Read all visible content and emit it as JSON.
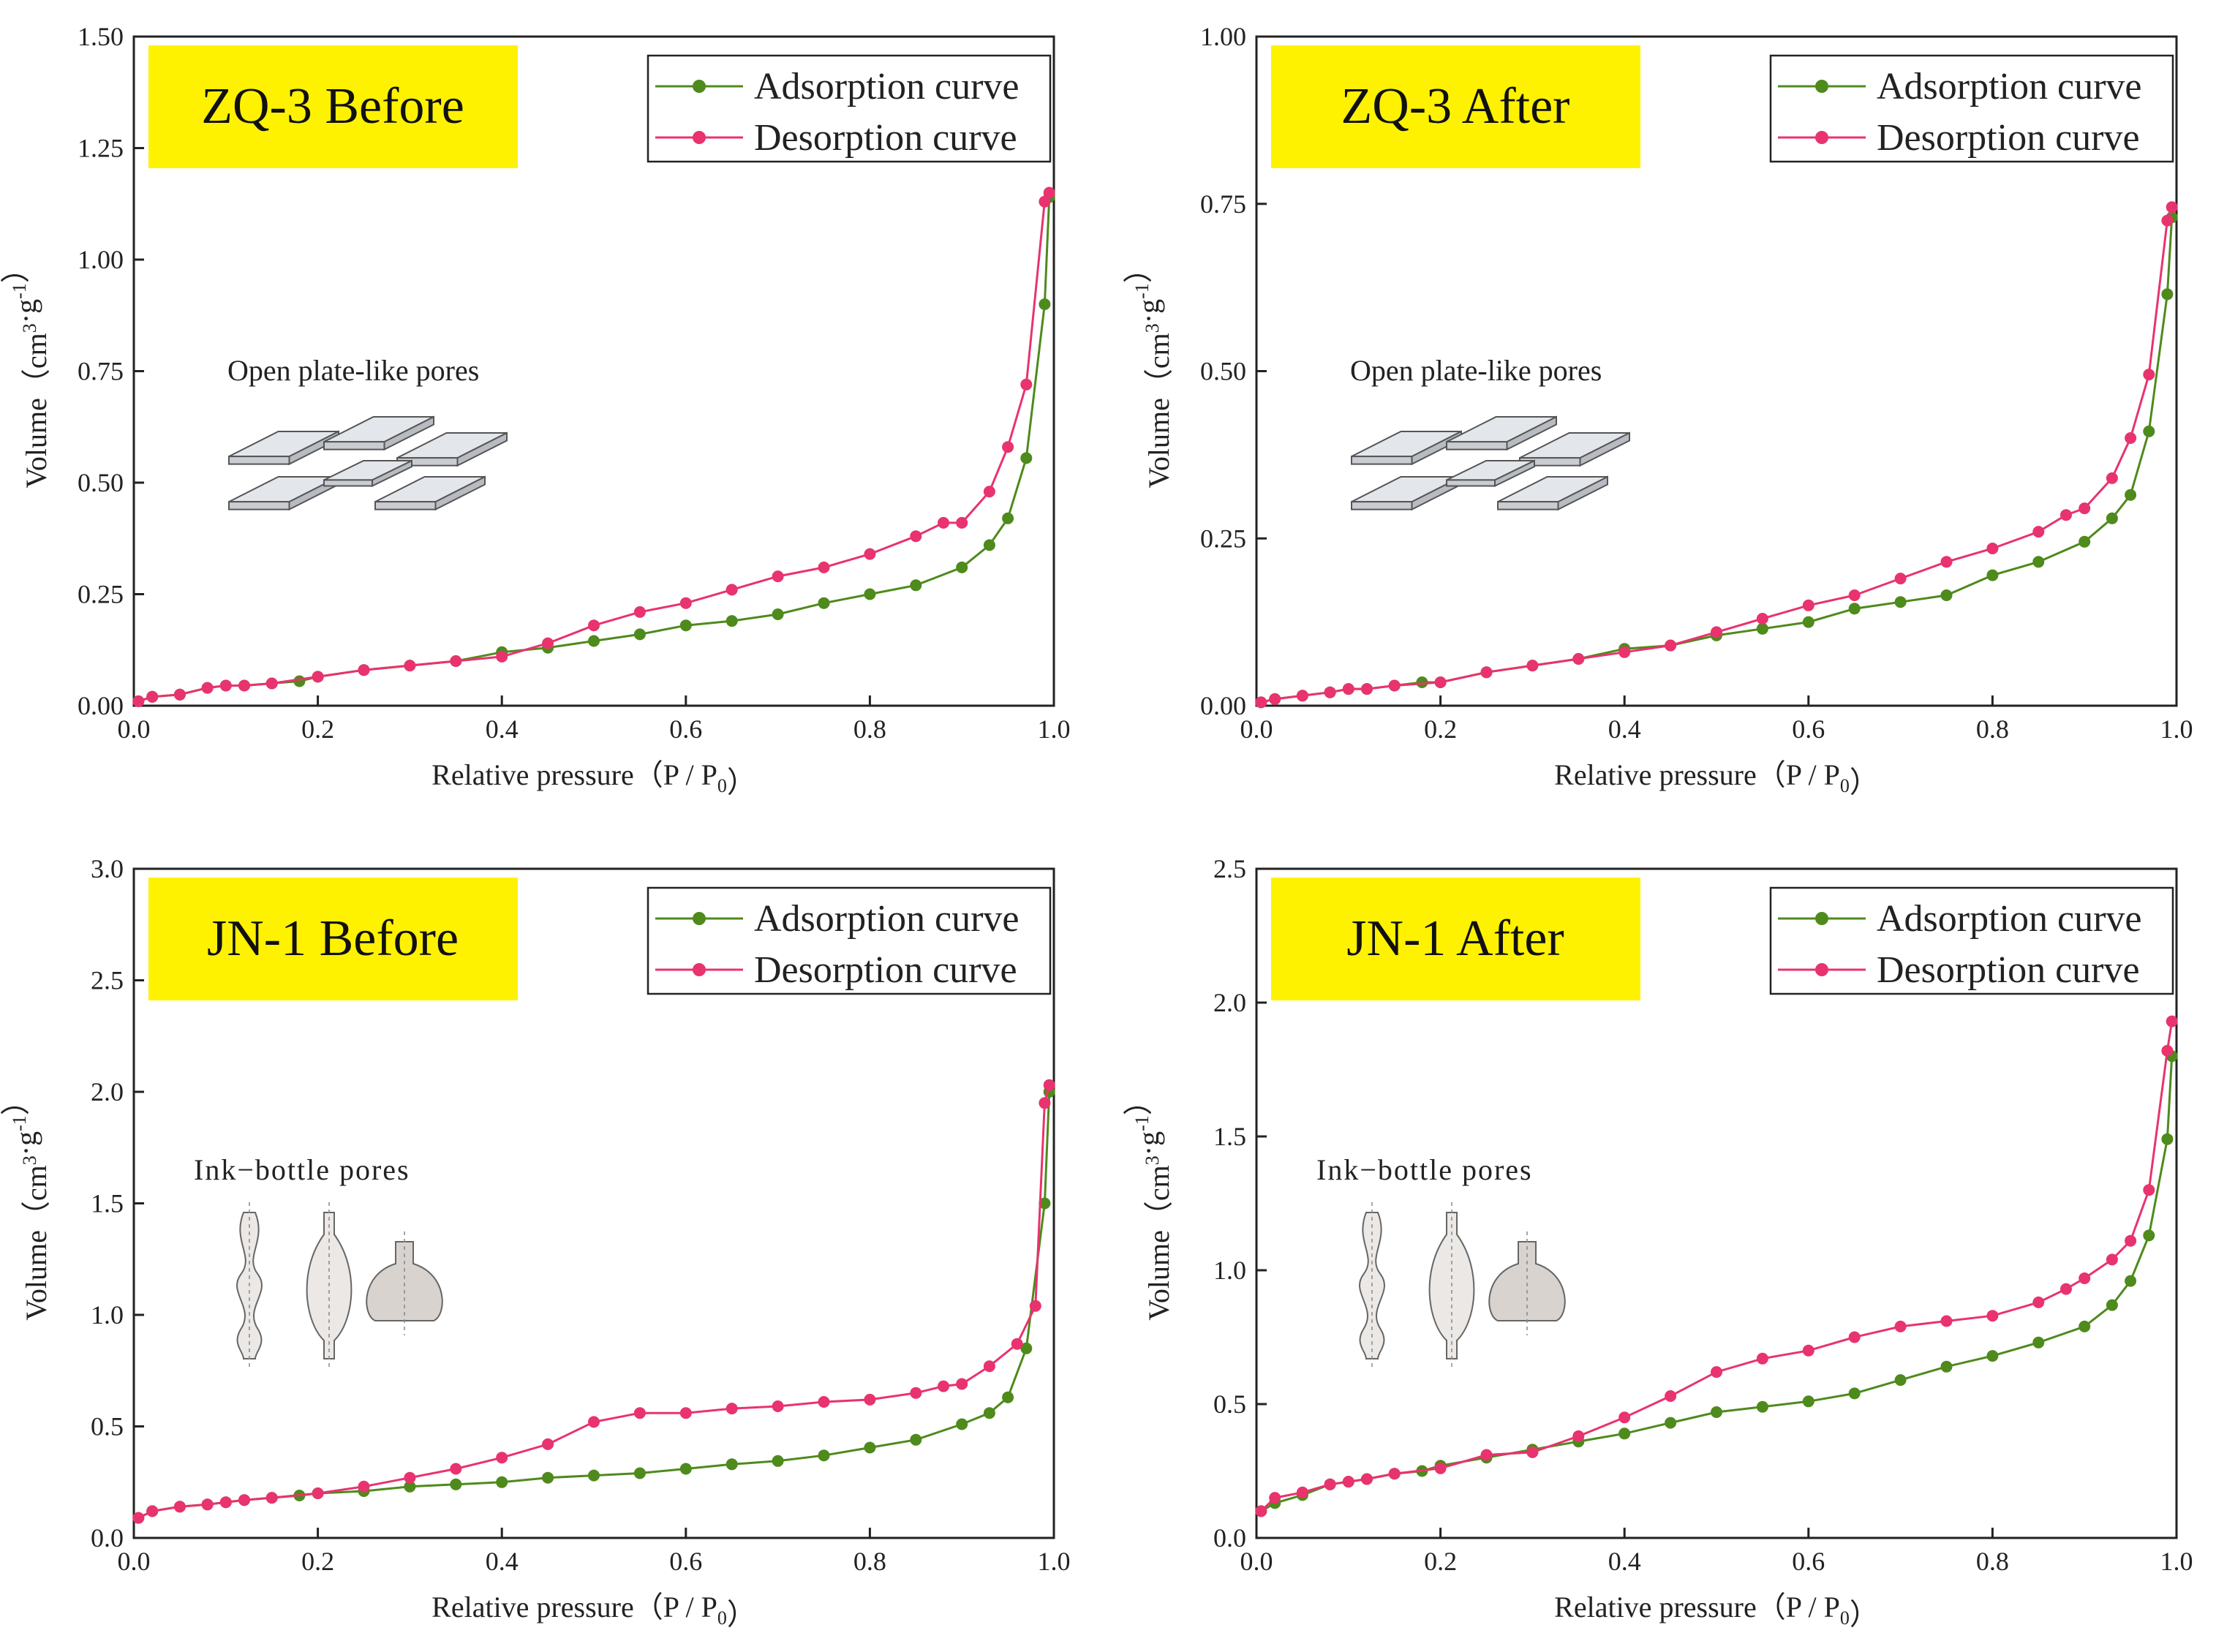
{
  "colors": {
    "adsorption": "#4e8a1c",
    "desorption": "#e8336e",
    "title_box": "#fff200",
    "axis": "#222222"
  },
  "chart_data": [
    {
      "type": "line",
      "title": "ZQ-3 Before",
      "xlabel": "Relative pressure（P / P0）",
      "ylabel": "Volume（cm3·g-1）",
      "xlim": [
        0,
        1
      ],
      "ylim": [
        0,
        1.5
      ],
      "xticks": [
        "0.0",
        "0.2",
        "0.4",
        "0.6",
        "0.8",
        "1.0"
      ],
      "yticks": [
        "0.00",
        "0.25",
        "0.50",
        "0.75",
        "1.00",
        "1.25",
        "1.50"
      ],
      "inset_label": "Open plate-like pores",
      "inset_icon": "plate-pores-icon",
      "legend_position": "top-right",
      "series": [
        {
          "name": "Adsorption curve",
          "x": [
            0.005,
            0.02,
            0.05,
            0.08,
            0.1,
            0.12,
            0.15,
            0.18,
            0.2,
            0.25,
            0.3,
            0.35,
            0.4,
            0.45,
            0.5,
            0.55,
            0.6,
            0.65,
            0.7,
            0.75,
            0.8,
            0.85,
            0.9,
            0.93,
            0.95,
            0.97,
            0.99,
            0.995
          ],
          "y": [
            0.01,
            0.02,
            0.025,
            0.04,
            0.045,
            0.045,
            0.05,
            0.055,
            0.065,
            0.08,
            0.09,
            0.1,
            0.12,
            0.13,
            0.145,
            0.16,
            0.18,
            0.19,
            0.205,
            0.23,
            0.25,
            0.27,
            0.31,
            0.36,
            0.42,
            0.555,
            0.9,
            1.14
          ]
        },
        {
          "name": "Desorption curve",
          "x": [
            0.995,
            0.99,
            0.97,
            0.95,
            0.93,
            0.9,
            0.88,
            0.85,
            0.8,
            0.75,
            0.7,
            0.65,
            0.6,
            0.55,
            0.5,
            0.45,
            0.4,
            0.35,
            0.3,
            0.25,
            0.2,
            0.15,
            0.12,
            0.1,
            0.08,
            0.05,
            0.02,
            0.005
          ],
          "y": [
            1.15,
            1.13,
            0.72,
            0.58,
            0.48,
            0.41,
            0.41,
            0.38,
            0.34,
            0.31,
            0.29,
            0.26,
            0.23,
            0.21,
            0.18,
            0.14,
            0.11,
            0.1,
            0.09,
            0.08,
            0.065,
            0.05,
            0.045,
            0.045,
            0.04,
            0.025,
            0.02,
            0.01
          ]
        }
      ]
    },
    {
      "type": "line",
      "title": "ZQ-3 After",
      "xlabel": "Relative pressure（P / P0）",
      "ylabel": "Volume（cm3·g-1）",
      "xlim": [
        0,
        1
      ],
      "ylim": [
        0,
        1.0
      ],
      "xticks": [
        "0.0",
        "0.2",
        "0.4",
        "0.6",
        "0.8",
        "1.0"
      ],
      "yticks": [
        "0.00",
        "0.25",
        "0.50",
        "0.75",
        "1.00"
      ],
      "inset_label": "Open plate-like pores",
      "inset_icon": "plate-pores-icon",
      "legend_position": "top-right",
      "series": [
        {
          "name": "Adsorption curve",
          "x": [
            0.005,
            0.02,
            0.05,
            0.08,
            0.1,
            0.12,
            0.15,
            0.18,
            0.2,
            0.25,
            0.3,
            0.35,
            0.4,
            0.45,
            0.5,
            0.55,
            0.6,
            0.65,
            0.7,
            0.75,
            0.8,
            0.85,
            0.9,
            0.93,
            0.95,
            0.97,
            0.99,
            0.995
          ],
          "y": [
            0.005,
            0.01,
            0.015,
            0.02,
            0.025,
            0.025,
            0.03,
            0.035,
            0.035,
            0.05,
            0.06,
            0.07,
            0.085,
            0.09,
            0.105,
            0.115,
            0.125,
            0.145,
            0.155,
            0.165,
            0.195,
            0.215,
            0.245,
            0.28,
            0.315,
            0.41,
            0.615,
            0.73
          ]
        },
        {
          "name": "Desorption curve",
          "x": [
            0.995,
            0.99,
            0.97,
            0.95,
            0.93,
            0.9,
            0.88,
            0.85,
            0.8,
            0.75,
            0.7,
            0.65,
            0.6,
            0.55,
            0.5,
            0.45,
            0.4,
            0.35,
            0.3,
            0.25,
            0.2,
            0.15,
            0.12,
            0.1,
            0.08,
            0.05,
            0.02,
            0.005
          ],
          "y": [
            0.745,
            0.725,
            0.495,
            0.4,
            0.34,
            0.295,
            0.285,
            0.26,
            0.235,
            0.215,
            0.19,
            0.165,
            0.15,
            0.13,
            0.11,
            0.09,
            0.08,
            0.07,
            0.06,
            0.05,
            0.035,
            0.03,
            0.025,
            0.025,
            0.02,
            0.015,
            0.01,
            0.005
          ]
        }
      ]
    },
    {
      "type": "line",
      "title": "JN-1 Before",
      "xlabel": "Relative pressure（P / P0）",
      "ylabel": "Volume（cm3·g-1）",
      "xlim": [
        0,
        1
      ],
      "ylim": [
        0,
        3.0
      ],
      "xticks": [
        "0.0",
        "0.2",
        "0.4",
        "0.6",
        "0.8",
        "1.0"
      ],
      "yticks": [
        "0.0",
        "0.5",
        "1.0",
        "1.5",
        "2.0",
        "2.5",
        "3.0"
      ],
      "inset_label": "Ink−bottle  pores",
      "inset_icon": "ink-bottle-pores-icon",
      "legend_position": "top-right",
      "series": [
        {
          "name": "Adsorption curve",
          "x": [
            0.005,
            0.02,
            0.05,
            0.08,
            0.1,
            0.12,
            0.15,
            0.18,
            0.2,
            0.25,
            0.3,
            0.35,
            0.4,
            0.45,
            0.5,
            0.55,
            0.6,
            0.65,
            0.7,
            0.75,
            0.8,
            0.85,
            0.9,
            0.93,
            0.95,
            0.97,
            0.99,
            0.995
          ],
          "y": [
            0.09,
            0.12,
            0.14,
            0.15,
            0.16,
            0.17,
            0.18,
            0.19,
            0.2,
            0.21,
            0.23,
            0.24,
            0.25,
            0.27,
            0.28,
            0.29,
            0.31,
            0.33,
            0.345,
            0.37,
            0.405,
            0.44,
            0.51,
            0.56,
            0.63,
            0.85,
            1.5,
            2.0
          ]
        },
        {
          "name": "Desorption curve",
          "x": [
            0.995,
            0.99,
            0.98,
            0.96,
            0.93,
            0.9,
            0.88,
            0.85,
            0.8,
            0.75,
            0.7,
            0.65,
            0.6,
            0.55,
            0.5,
            0.45,
            0.4,
            0.35,
            0.3,
            0.25,
            0.2,
            0.15,
            0.12,
            0.1,
            0.08,
            0.05,
            0.02,
            0.005
          ],
          "y": [
            2.03,
            1.95,
            1.04,
            0.87,
            0.77,
            0.69,
            0.68,
            0.65,
            0.62,
            0.61,
            0.59,
            0.58,
            0.56,
            0.56,
            0.52,
            0.42,
            0.36,
            0.31,
            0.27,
            0.23,
            0.2,
            0.18,
            0.17,
            0.16,
            0.15,
            0.14,
            0.12,
            0.09
          ]
        }
      ]
    },
    {
      "type": "line",
      "title": "JN-1 After",
      "xlabel": "Relative pressure（P / P0）",
      "ylabel": "Volume（cm3·g-1）",
      "xlim": [
        0,
        1
      ],
      "ylim": [
        0,
        2.5
      ],
      "xticks": [
        "0.0",
        "0.2",
        "0.4",
        "0.6",
        "0.8",
        "1.0"
      ],
      "yticks": [
        "0.0",
        "0.5",
        "1.0",
        "1.5",
        "2.0",
        "2.5"
      ],
      "inset_label": "Ink−bottle  pores",
      "inset_icon": "ink-bottle-pores-icon",
      "legend_position": "top-right",
      "series": [
        {
          "name": "Adsorption curve",
          "x": [
            0.005,
            0.02,
            0.05,
            0.08,
            0.1,
            0.12,
            0.15,
            0.18,
            0.2,
            0.25,
            0.3,
            0.35,
            0.4,
            0.45,
            0.5,
            0.55,
            0.6,
            0.65,
            0.7,
            0.75,
            0.8,
            0.85,
            0.9,
            0.93,
            0.95,
            0.97,
            0.99,
            0.995
          ],
          "y": [
            0.1,
            0.13,
            0.16,
            0.2,
            0.21,
            0.22,
            0.24,
            0.25,
            0.27,
            0.3,
            0.33,
            0.36,
            0.39,
            0.43,
            0.47,
            0.49,
            0.51,
            0.54,
            0.59,
            0.64,
            0.68,
            0.73,
            0.79,
            0.87,
            0.96,
            1.13,
            1.49,
            1.8
          ]
        },
        {
          "name": "Desorption curve",
          "x": [
            0.995,
            0.99,
            0.97,
            0.95,
            0.93,
            0.9,
            0.88,
            0.85,
            0.8,
            0.75,
            0.7,
            0.65,
            0.6,
            0.55,
            0.5,
            0.45,
            0.4,
            0.35,
            0.3,
            0.25,
            0.2,
            0.15,
            0.12,
            0.1,
            0.08,
            0.05,
            0.02,
            0.005
          ],
          "y": [
            1.93,
            1.82,
            1.3,
            1.11,
            1.04,
            0.97,
            0.93,
            0.88,
            0.83,
            0.81,
            0.79,
            0.75,
            0.7,
            0.67,
            0.62,
            0.53,
            0.45,
            0.38,
            0.32,
            0.31,
            0.26,
            0.24,
            0.22,
            0.21,
            0.2,
            0.17,
            0.15,
            0.1
          ]
        }
      ]
    }
  ]
}
